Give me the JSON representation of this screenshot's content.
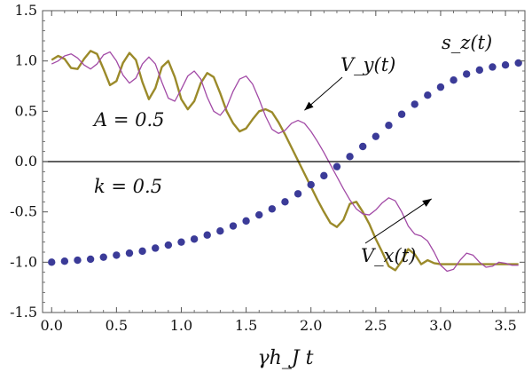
{
  "chart_data": {
    "type": "line",
    "title": "",
    "xlabel": "γh_J t",
    "ylabel": "",
    "xlim": [
      -0.07,
      3.65
    ],
    "ylim": [
      -1.5,
      1.5
    ],
    "grid": false,
    "zero_line": true,
    "x_ticks": [
      "0.0",
      "0.5",
      "1.0",
      "1.5",
      "2.0",
      "2.5",
      "3.0",
      "3.5"
    ],
    "x_tick_values": [
      0.0,
      0.5,
      1.0,
      1.5,
      2.0,
      2.5,
      3.0,
      3.5
    ],
    "y_ticks": [
      "1.5",
      "1.0",
      "0.5",
      "0.0",
      "-0.5",
      "-1.0",
      "-1.5"
    ],
    "y_tick_values": [
      1.5,
      1.0,
      0.5,
      0.0,
      -0.5,
      -1.0,
      -1.5
    ],
    "series": [
      {
        "name": "V_y(t)",
        "style": "line",
        "color": "#9b8a2a",
        "x": [
          0.0,
          0.05,
          0.1,
          0.15,
          0.2,
          0.25,
          0.3,
          0.35,
          0.4,
          0.45,
          0.5,
          0.55,
          0.6,
          0.65,
          0.7,
          0.75,
          0.8,
          0.85,
          0.9,
          0.95,
          1.0,
          1.05,
          1.1,
          1.15,
          1.2,
          1.25,
          1.3,
          1.35,
          1.4,
          1.45,
          1.5,
          1.55,
          1.6,
          1.65,
          1.7,
          1.75,
          1.8,
          1.85,
          1.9,
          1.95,
          2.0,
          2.05,
          2.1,
          2.15,
          2.2,
          2.25,
          2.3,
          2.35,
          2.4,
          2.45,
          2.5,
          2.55,
          2.6,
          2.65,
          2.7,
          2.75,
          2.8,
          2.85,
          2.9,
          2.95,
          3.0,
          3.05,
          3.1,
          3.15,
          3.2,
          3.25,
          3.3,
          3.35,
          3.4,
          3.45,
          3.5,
          3.55,
          3.6
        ],
        "values": [
          1.01,
          1.05,
          1.02,
          0.93,
          0.92,
          1.02,
          1.1,
          1.07,
          0.92,
          0.76,
          0.8,
          0.98,
          1.08,
          1.01,
          0.79,
          0.62,
          0.73,
          0.94,
          1.0,
          0.84,
          0.62,
          0.52,
          0.6,
          0.78,
          0.88,
          0.84,
          0.68,
          0.5,
          0.38,
          0.3,
          0.33,
          0.42,
          0.5,
          0.52,
          0.49,
          0.39,
          0.27,
          0.14,
          0.01,
          -0.12,
          -0.25,
          -0.38,
          -0.5,
          -0.61,
          -0.65,
          -0.58,
          -0.42,
          -0.4,
          -0.5,
          -0.62,
          -0.77,
          -0.9,
          -1.04,
          -1.08,
          -0.99,
          -0.87,
          -0.92,
          -1.02,
          -0.98,
          -1.01,
          -1.02,
          -1.02,
          -1.02,
          -1.02,
          -1.02,
          -1.02,
          -1.02,
          -1.02,
          -1.02,
          -1.02,
          -1.02,
          -1.02,
          -1.02
        ]
      },
      {
        "name": "V_x(t)",
        "style": "line",
        "color": "#a24aa6",
        "x": [
          0.0,
          0.05,
          0.1,
          0.15,
          0.2,
          0.25,
          0.3,
          0.35,
          0.4,
          0.45,
          0.5,
          0.55,
          0.6,
          0.65,
          0.7,
          0.75,
          0.8,
          0.85,
          0.9,
          0.95,
          1.0,
          1.05,
          1.1,
          1.15,
          1.2,
          1.25,
          1.3,
          1.35,
          1.4,
          1.45,
          1.5,
          1.55,
          1.6,
          1.65,
          1.7,
          1.75,
          1.8,
          1.85,
          1.9,
          1.95,
          2.0,
          2.05,
          2.1,
          2.15,
          2.2,
          2.25,
          2.3,
          2.35,
          2.4,
          2.45,
          2.5,
          2.55,
          2.6,
          2.65,
          2.7,
          2.75,
          2.8,
          2.85,
          2.9,
          2.95,
          3.0,
          3.05,
          3.1,
          3.15,
          3.2,
          3.25,
          3.3,
          3.35,
          3.4,
          3.45,
          3.5,
          3.55,
          3.6
        ],
        "values": [
          0.97,
          1.0,
          1.05,
          1.07,
          1.03,
          0.96,
          0.92,
          0.97,
          1.06,
          1.09,
          1.0,
          0.86,
          0.78,
          0.83,
          0.97,
          1.04,
          0.97,
          0.79,
          0.63,
          0.6,
          0.72,
          0.85,
          0.9,
          0.82,
          0.64,
          0.5,
          0.46,
          0.54,
          0.7,
          0.82,
          0.85,
          0.77,
          0.62,
          0.45,
          0.32,
          0.28,
          0.31,
          0.38,
          0.41,
          0.38,
          0.3,
          0.2,
          0.09,
          -0.03,
          -0.15,
          -0.27,
          -0.38,
          -0.47,
          -0.52,
          -0.53,
          -0.48,
          -0.41,
          -0.36,
          -0.39,
          -0.5,
          -0.64,
          -0.72,
          -0.74,
          -0.79,
          -0.9,
          -1.03,
          -1.09,
          -1.07,
          -0.98,
          -0.91,
          -0.93,
          -1.0,
          -1.05,
          -1.04,
          -1.0,
          -1.01,
          -1.03,
          -1.03
        ]
      },
      {
        "name": "s_z(t)",
        "style": "dots",
        "color": "#3b3b98",
        "x": [
          0.0,
          0.1,
          0.2,
          0.3,
          0.4,
          0.5,
          0.6,
          0.7,
          0.8,
          0.9,
          1.0,
          1.1,
          1.2,
          1.3,
          1.4,
          1.5,
          1.6,
          1.7,
          1.8,
          1.9,
          2.0,
          2.1,
          2.2,
          2.3,
          2.4,
          2.5,
          2.6,
          2.7,
          2.8,
          2.9,
          3.0,
          3.1,
          3.2,
          3.3,
          3.4,
          3.5,
          3.6
        ],
        "values": [
          -1.0,
          -0.99,
          -0.98,
          -0.97,
          -0.95,
          -0.93,
          -0.91,
          -0.89,
          -0.86,
          -0.83,
          -0.8,
          -0.77,
          -0.73,
          -0.69,
          -0.64,
          -0.59,
          -0.53,
          -0.47,
          -0.4,
          -0.32,
          -0.23,
          -0.14,
          -0.05,
          0.05,
          0.15,
          0.25,
          0.36,
          0.47,
          0.57,
          0.66,
          0.74,
          0.81,
          0.87,
          0.91,
          0.94,
          0.96,
          0.98
        ]
      }
    ],
    "labels": {
      "vy": "V_y(t)",
      "vx": "V_x(t)",
      "sz": "s_z(t)",
      "a": "A = 0.5",
      "k": "k = 0.5"
    },
    "annotations": [
      {
        "label": "V_y(t)",
        "target_x": 1.95,
        "target_y": 0.51
      },
      {
        "label": "V_x(t)",
        "target_x": 2.93,
        "target_y": -0.37
      }
    ]
  }
}
